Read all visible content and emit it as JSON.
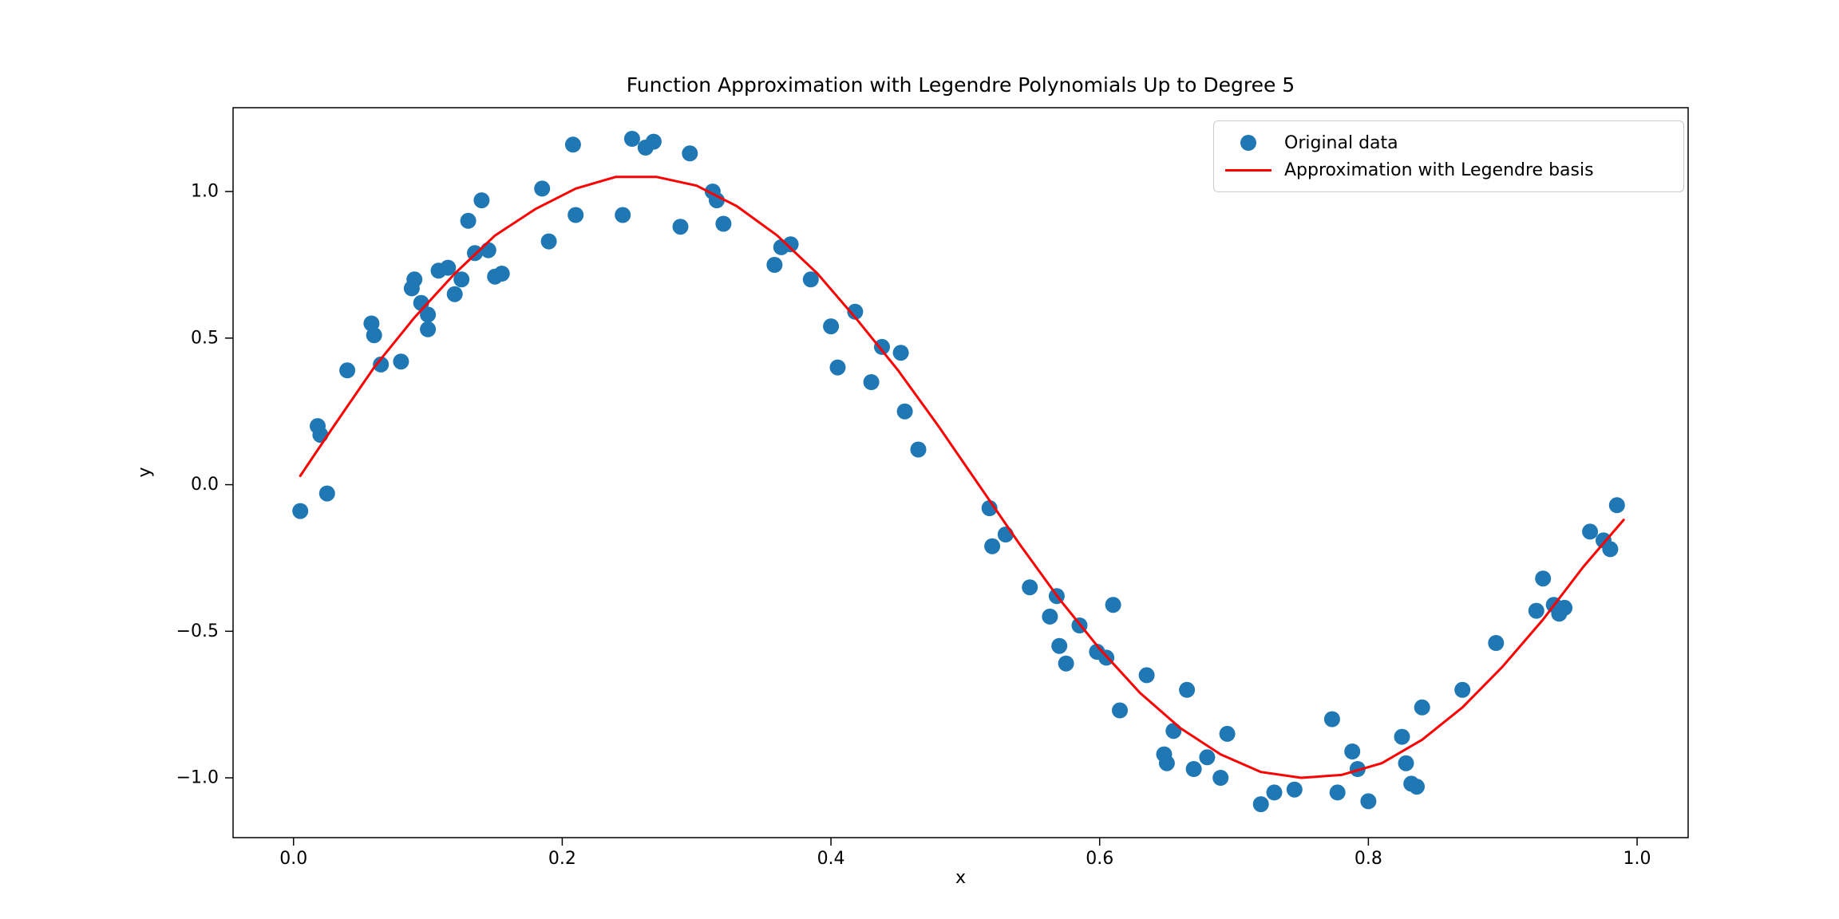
{
  "figure": {
    "background": "#ffffff"
  },
  "chart_data": {
    "type": "scatter",
    "title": "Function Approximation with Legendre Polynomials Up to Degree 5",
    "xlabel": "x",
    "ylabel": "y",
    "xlim": [
      -0.045,
      1.038
    ],
    "ylim": [
      -1.204,
      1.286
    ],
    "x_ticks": [
      0.0,
      0.2,
      0.4,
      0.6,
      0.8,
      1.0
    ],
    "x_tick_labels": [
      "0.0",
      "0.2",
      "0.4",
      "0.6",
      "0.8",
      "1.0"
    ],
    "y_ticks": [
      -1.0,
      -0.5,
      0.0,
      0.5,
      1.0
    ],
    "y_tick_labels": [
      "−1.0",
      "−0.5",
      "0.0",
      "0.5",
      "1.0"
    ],
    "grid": false,
    "legend_position": "upper right",
    "axis_color": "#000000",
    "series": [
      {
        "name": "Original data",
        "type": "scatter",
        "color": "#1f77b4",
        "marker": "circle",
        "points": [
          [
            0.005,
            -0.09
          ],
          [
            0.018,
            0.2
          ],
          [
            0.02,
            0.17
          ],
          [
            0.025,
            -0.03
          ],
          [
            0.04,
            0.39
          ],
          [
            0.058,
            0.55
          ],
          [
            0.06,
            0.51
          ],
          [
            0.065,
            0.41
          ],
          [
            0.08,
            0.42
          ],
          [
            0.088,
            0.67
          ],
          [
            0.09,
            0.7
          ],
          [
            0.095,
            0.62
          ],
          [
            0.1,
            0.53
          ],
          [
            0.1,
            0.58
          ],
          [
            0.108,
            0.73
          ],
          [
            0.115,
            0.74
          ],
          [
            0.12,
            0.65
          ],
          [
            0.125,
            0.7
          ],
          [
            0.13,
            0.9
          ],
          [
            0.135,
            0.79
          ],
          [
            0.14,
            0.97
          ],
          [
            0.145,
            0.8
          ],
          [
            0.15,
            0.71
          ],
          [
            0.155,
            0.72
          ],
          [
            0.185,
            1.01
          ],
          [
            0.19,
            0.83
          ],
          [
            0.208,
            1.16
          ],
          [
            0.21,
            0.92
          ],
          [
            0.245,
            0.92
          ],
          [
            0.252,
            1.18
          ],
          [
            0.262,
            1.15
          ],
          [
            0.268,
            1.17
          ],
          [
            0.288,
            0.88
          ],
          [
            0.295,
            1.13
          ],
          [
            0.312,
            1.0
          ],
          [
            0.315,
            0.97
          ],
          [
            0.32,
            0.89
          ],
          [
            0.358,
            0.75
          ],
          [
            0.363,
            0.81
          ],
          [
            0.37,
            0.82
          ],
          [
            0.385,
            0.7
          ],
          [
            0.4,
            0.54
          ],
          [
            0.405,
            0.4
          ],
          [
            0.418,
            0.59
          ],
          [
            0.43,
            0.35
          ],
          [
            0.438,
            0.47
          ],
          [
            0.452,
            0.45
          ],
          [
            0.455,
            0.25
          ],
          [
            0.465,
            0.12
          ],
          [
            0.518,
            -0.08
          ],
          [
            0.52,
            -0.21
          ],
          [
            0.53,
            -0.17
          ],
          [
            0.548,
            -0.35
          ],
          [
            0.563,
            -0.45
          ],
          [
            0.568,
            -0.38
          ],
          [
            0.57,
            -0.55
          ],
          [
            0.575,
            -0.61
          ],
          [
            0.585,
            -0.48
          ],
          [
            0.598,
            -0.57
          ],
          [
            0.605,
            -0.59
          ],
          [
            0.61,
            -0.41
          ],
          [
            0.615,
            -0.77
          ],
          [
            0.635,
            -0.65
          ],
          [
            0.648,
            -0.92
          ],
          [
            0.65,
            -0.95
          ],
          [
            0.655,
            -0.84
          ],
          [
            0.665,
            -0.7
          ],
          [
            0.67,
            -0.97
          ],
          [
            0.68,
            -0.93
          ],
          [
            0.69,
            -1.0
          ],
          [
            0.695,
            -0.85
          ],
          [
            0.72,
            -1.09
          ],
          [
            0.73,
            -1.05
          ],
          [
            0.745,
            -1.04
          ],
          [
            0.773,
            -0.8
          ],
          [
            0.777,
            -1.05
          ],
          [
            0.788,
            -0.91
          ],
          [
            0.792,
            -0.97
          ],
          [
            0.8,
            -1.08
          ],
          [
            0.825,
            -0.86
          ],
          [
            0.828,
            -0.95
          ],
          [
            0.832,
            -1.02
          ],
          [
            0.836,
            -1.03
          ],
          [
            0.84,
            -0.76
          ],
          [
            0.87,
            -0.7
          ],
          [
            0.895,
            -0.54
          ],
          [
            0.925,
            -0.43
          ],
          [
            0.93,
            -0.32
          ],
          [
            0.938,
            -0.41
          ],
          [
            0.942,
            -0.44
          ],
          [
            0.946,
            -0.42
          ],
          [
            0.965,
            -0.16
          ],
          [
            0.975,
            -0.19
          ],
          [
            0.98,
            -0.22
          ],
          [
            0.985,
            -0.07
          ]
        ]
      },
      {
        "name": "Approximation with Legendre basis",
        "type": "line",
        "color": "#ff0000",
        "points": [
          [
            0.005,
            0.03
          ],
          [
            0.03,
            0.2
          ],
          [
            0.06,
            0.4
          ],
          [
            0.09,
            0.57
          ],
          [
            0.12,
            0.72
          ],
          [
            0.15,
            0.85
          ],
          [
            0.18,
            0.94
          ],
          [
            0.21,
            1.01
          ],
          [
            0.24,
            1.05
          ],
          [
            0.27,
            1.05
          ],
          [
            0.3,
            1.02
          ],
          [
            0.33,
            0.95
          ],
          [
            0.36,
            0.85
          ],
          [
            0.39,
            0.72
          ],
          [
            0.42,
            0.56
          ],
          [
            0.45,
            0.39
          ],
          [
            0.48,
            0.2
          ],
          [
            0.51,
            0.0
          ],
          [
            0.54,
            -0.2
          ],
          [
            0.57,
            -0.39
          ],
          [
            0.6,
            -0.56
          ],
          [
            0.63,
            -0.71
          ],
          [
            0.66,
            -0.83
          ],
          [
            0.69,
            -0.92
          ],
          [
            0.72,
            -0.98
          ],
          [
            0.75,
            -1.0
          ],
          [
            0.78,
            -0.99
          ],
          [
            0.81,
            -0.95
          ],
          [
            0.84,
            -0.87
          ],
          [
            0.87,
            -0.76
          ],
          [
            0.9,
            -0.62
          ],
          [
            0.93,
            -0.46
          ],
          [
            0.96,
            -0.28
          ],
          [
            0.99,
            -0.12
          ]
        ]
      }
    ]
  }
}
